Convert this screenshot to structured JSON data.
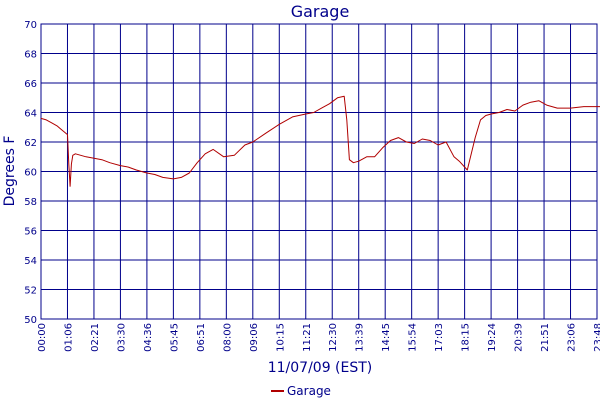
{
  "chart_data": {
    "type": "line",
    "title": "Garage",
    "xlabel": "11/07/09 (EST)",
    "ylabel": "Degrees F",
    "ylim": [
      50,
      70
    ],
    "yticks": [
      "50",
      "52",
      "54",
      "56",
      "58",
      "60",
      "62",
      "64",
      "66",
      "68",
      "70"
    ],
    "xticks": [
      "00:00",
      "01:06",
      "02:21",
      "03:30",
      "04:36",
      "05:45",
      "06:51",
      "08:00",
      "09:06",
      "10:15",
      "11:21",
      "12:30",
      "13:39",
      "14:45",
      "15:54",
      "17:03",
      "18:15",
      "19:24",
      "20:39",
      "21:51",
      "23:06",
      "23:48"
    ],
    "grid": true,
    "legend_position": "bottom-center",
    "colors": {
      "series": "#b00000",
      "axis": "#00008b",
      "grid": "#00008b"
    },
    "series": [
      {
        "name": "Garage",
        "x": [
          0,
          0.2,
          0.4,
          0.6,
          0.8,
          1.0,
          1.05,
          1.1,
          1.15,
          1.2,
          1.3,
          1.5,
          1.7,
          2.0,
          2.3,
          2.6,
          3.0,
          3.3,
          3.6,
          4.0,
          4.3,
          4.6,
          5.0,
          5.3,
          5.6,
          5.9,
          6.2,
          6.5,
          6.9,
          7.3,
          7.7,
          8.0,
          8.5,
          9.0,
          9.5,
          10.0,
          10.3,
          10.6,
          10.9,
          11.2,
          11.45,
          11.55,
          11.65,
          11.8,
          12.0,
          12.3,
          12.6,
          12.9,
          13.2,
          13.5,
          13.8,
          14.1,
          14.4,
          14.7,
          15.0,
          15.3,
          15.6,
          15.8,
          16.1,
          16.4,
          16.6,
          16.8,
          17.0,
          17.3,
          17.6,
          17.9,
          18.2,
          18.5,
          18.8,
          19.1,
          19.5,
          20.0,
          20.5,
          21.0,
          21.5,
          22.0,
          22.5,
          23.0,
          23.4,
          23.8
        ],
        "y": [
          63.6,
          63.5,
          63.3,
          63.1,
          62.8,
          62.5,
          60.5,
          59.0,
          60.5,
          61.1,
          61.2,
          61.1,
          61.0,
          60.9,
          60.8,
          60.6,
          60.4,
          60.3,
          60.1,
          59.9,
          59.8,
          59.6,
          59.5,
          59.6,
          59.9,
          60.6,
          61.2,
          61.5,
          61.0,
          61.1,
          61.8,
          62.0,
          62.6,
          63.2,
          63.7,
          63.9,
          64.0,
          64.3,
          64.6,
          65.0,
          65.1,
          63.5,
          60.8,
          60.6,
          60.7,
          61.0,
          61.0,
          61.6,
          62.1,
          62.3,
          62.0,
          61.9,
          62.2,
          62.1,
          61.8,
          62.0,
          61.0,
          60.7,
          60.1,
          62.3,
          63.5,
          63.8,
          63.9,
          64.0,
          64.2,
          64.1,
          64.5,
          64.7,
          64.8,
          64.5,
          64.3,
          64.3,
          64.4,
          64.4,
          64.4,
          64.3,
          64.3,
          64.4,
          64.6,
          64.7
        ]
      }
    ]
  }
}
